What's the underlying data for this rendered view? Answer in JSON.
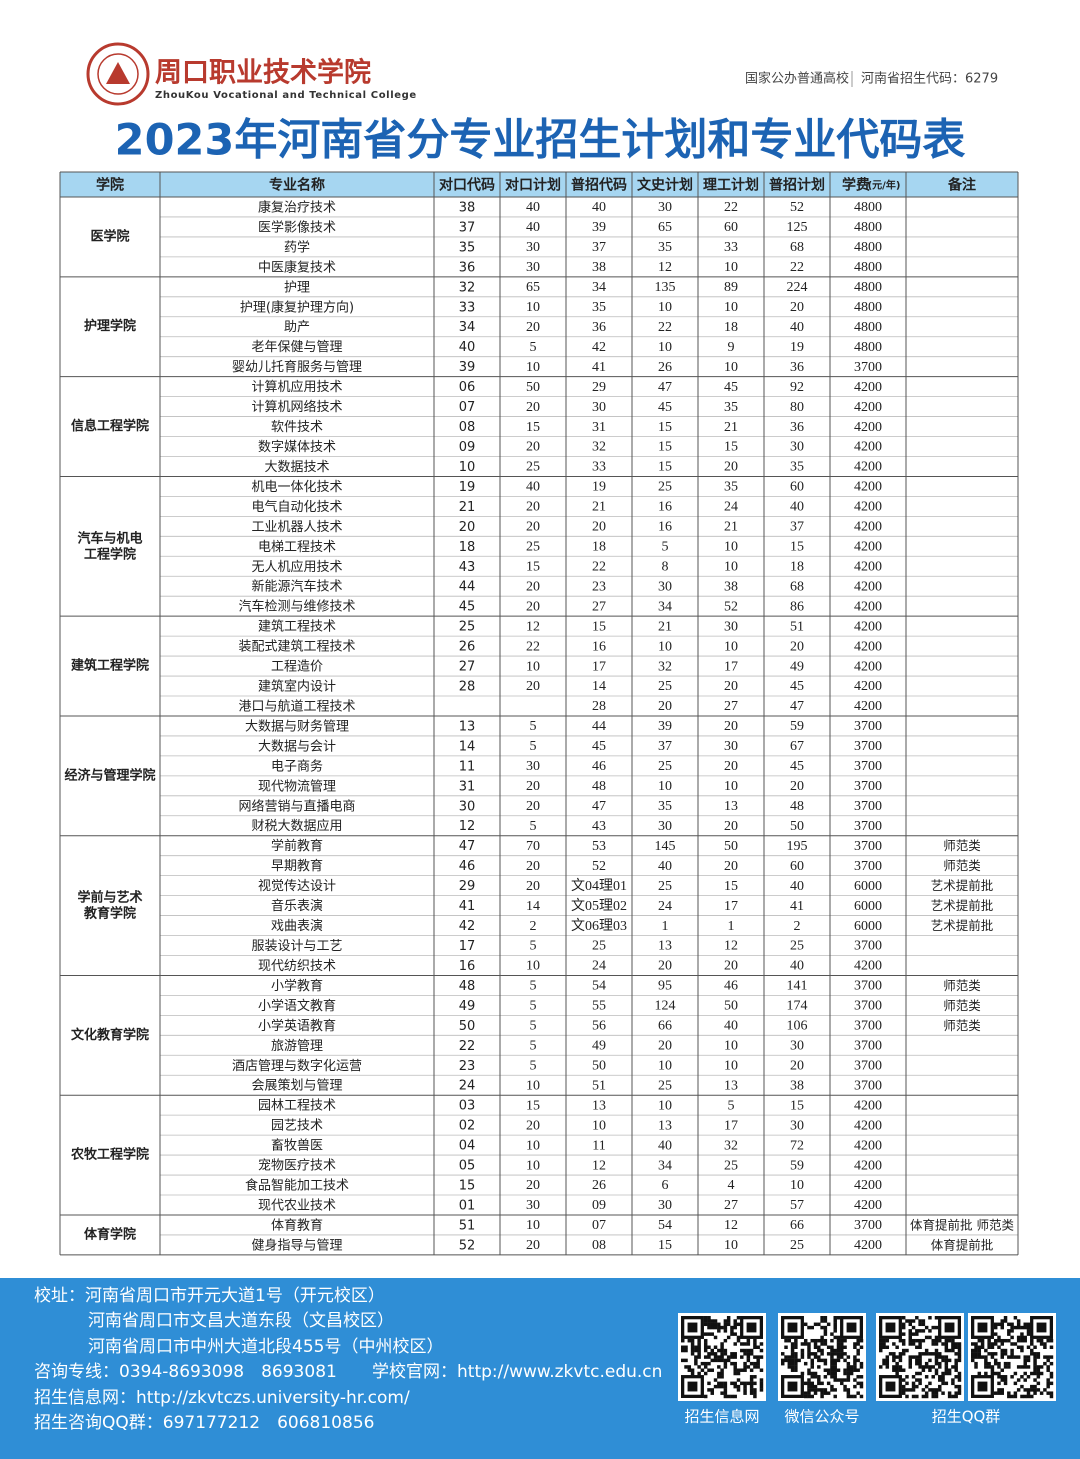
{
  "header": {
    "school_name": "周口职业技术学院",
    "school_name_en": "ZhouKou Vocational and Technical College",
    "tagline": "国家公办普通高校",
    "enroll_code": "河南省招生代码：6279"
  },
  "title": "2023年河南省分专业招生计划和专业代码表",
  "table": {
    "columns": [
      "学院",
      "专业名称",
      "对口代码",
      "对口计划",
      "普招代码",
      "文史计划",
      "理工计划",
      "普招计划",
      "学费",
      "备注"
    ],
    "fee_unit": "(元/年)",
    "groups": [
      {
        "college": "医学院",
        "rows": [
          [
            "康复治疗技术",
            "38",
            "40",
            "40",
            "30",
            "22",
            "52",
            "4800",
            null
          ],
          [
            "医学影像技术",
            "37",
            "40",
            "39",
            "65",
            "60",
            "125",
            "4800",
            null
          ],
          [
            "药学",
            "35",
            "30",
            "37",
            "35",
            "33",
            "68",
            "4800",
            null
          ],
          [
            "中医康复技术",
            "36",
            "30",
            "38",
            "12",
            "10",
            "22",
            "4800",
            null
          ]
        ]
      },
      {
        "college": "护理学院",
        "rows": [
          [
            "护理",
            "32",
            "65",
            "34",
            "135",
            "89",
            "224",
            "4800",
            null
          ],
          [
            "护理(康复护理方向)",
            "33",
            "10",
            "35",
            "10",
            "10",
            "20",
            "4800",
            null
          ],
          [
            "助产",
            "34",
            "20",
            "36",
            "22",
            "18",
            "40",
            "4800",
            null
          ],
          [
            "老年保健与管理",
            "40",
            "5",
            "42",
            "10",
            "9",
            "19",
            "4800",
            null
          ],
          [
            "婴幼儿托育服务与管理",
            "39",
            "10",
            "41",
            "26",
            "10",
            "36",
            "3700",
            null
          ]
        ]
      },
      {
        "college": "信息工程学院",
        "rows": [
          [
            "计算机应用技术",
            "06",
            "50",
            "29",
            "47",
            "45",
            "92",
            "4200",
            null
          ],
          [
            "计算机网络技术",
            "07",
            "20",
            "30",
            "45",
            "35",
            "80",
            "4200",
            null
          ],
          [
            "软件技术",
            "08",
            "15",
            "31",
            "15",
            "21",
            "36",
            "4200",
            null
          ],
          [
            "数字媒体技术",
            "09",
            "20",
            "32",
            "15",
            "15",
            "30",
            "4200",
            null
          ],
          [
            "大数据技术",
            "10",
            "25",
            "33",
            "15",
            "20",
            "35",
            "4200",
            null
          ]
        ]
      },
      {
        "college": "汽车与机电工程学院",
        "rows": [
          [
            "机电一体化技术",
            "19",
            "40",
            "19",
            "25",
            "35",
            "60",
            "4200",
            null
          ],
          [
            "电气自动化技术",
            "21",
            "20",
            "21",
            "16",
            "24",
            "40",
            "4200",
            null
          ],
          [
            "工业机器人技术",
            "20",
            "20",
            "20",
            "16",
            "21",
            "37",
            "4200",
            null
          ],
          [
            "电梯工程技术",
            "18",
            "25",
            "18",
            "5",
            "10",
            "15",
            "4200",
            null
          ],
          [
            "无人机应用技术",
            "43",
            "15",
            "22",
            "8",
            "10",
            "18",
            "4200",
            null
          ],
          [
            "新能源汽车技术",
            "44",
            "20",
            "23",
            "30",
            "38",
            "68",
            "4200",
            null
          ],
          [
            "汽车检测与维修技术",
            "45",
            "20",
            "27",
            "34",
            "52",
            "86",
            "4200",
            null
          ]
        ]
      },
      {
        "college": "建筑工程学院",
        "rows": [
          [
            "建筑工程技术",
            "25",
            "12",
            "15",
            "21",
            "30",
            "51",
            "4200",
            null
          ],
          [
            "装配式建筑工程技术",
            "26",
            "22",
            "16",
            "10",
            "10",
            "20",
            "4200",
            null
          ],
          [
            "工程造价",
            "27",
            "10",
            "17",
            "32",
            "17",
            "49",
            "4200",
            null
          ],
          [
            "建筑室内设计",
            "28",
            "20",
            "14",
            "25",
            "20",
            "45",
            "4200",
            null
          ],
          [
            "港口与航道工程技术",
            null,
            null,
            "28",
            "20",
            "27",
            "47",
            "4200",
            null
          ]
        ]
      },
      {
        "college": "经济与管理学院",
        "rows": [
          [
            "大数据与财务管理",
            "13",
            "5",
            "44",
            "39",
            "20",
            "59",
            "3700",
            null
          ],
          [
            "大数据与会计",
            "14",
            "5",
            "45",
            "37",
            "30",
            "67",
            "3700",
            null
          ],
          [
            "电子商务",
            "11",
            "30",
            "46",
            "25",
            "20",
            "45",
            "3700",
            null
          ],
          [
            "现代物流管理",
            "31",
            "20",
            "48",
            "10",
            "10",
            "20",
            "3700",
            null
          ],
          [
            "网络营销与直播电商",
            "30",
            "20",
            "47",
            "35",
            "13",
            "48",
            "3700",
            null
          ],
          [
            "财税大数据应用",
            "12",
            "5",
            "43",
            "30",
            "20",
            "50",
            "3700",
            null
          ]
        ]
      },
      {
        "college": "学前与艺术教育学院",
        "rows": [
          [
            "学前教育",
            "47",
            "70",
            "53",
            "145",
            "50",
            "195",
            "3700",
            "师范类"
          ],
          [
            "早期教育",
            "46",
            "20",
            "52",
            "40",
            "20",
            "60",
            "3700",
            "师范类"
          ],
          [
            "视觉传达设计",
            "29",
            "20",
            "文04理01",
            "25",
            "15",
            "40",
            "6000",
            "艺术提前批"
          ],
          [
            "音乐表演",
            "41",
            "14",
            "文05理02",
            "24",
            "17",
            "41",
            "6000",
            "艺术提前批"
          ],
          [
            "戏曲表演",
            "42",
            "2",
            "文06理03",
            "1",
            "1",
            "2",
            "6000",
            "艺术提前批"
          ],
          [
            "服装设计与工艺",
            "17",
            "5",
            "25",
            "13",
            "12",
            "25",
            "3700",
            null
          ],
          [
            "现代纺织技术",
            "16",
            "10",
            "24",
            "20",
            "20",
            "40",
            "4200",
            null
          ]
        ]
      },
      {
        "college": "文化教育学院",
        "rows": [
          [
            "小学教育",
            "48",
            "5",
            "54",
            "95",
            "46",
            "141",
            "3700",
            "师范类"
          ],
          [
            "小学语文教育",
            "49",
            "5",
            "55",
            "124",
            "50",
            "174",
            "3700",
            "师范类"
          ],
          [
            "小学英语教育",
            "50",
            "5",
            "56",
            "66",
            "40",
            "106",
            "3700",
            "师范类"
          ],
          [
            "旅游管理",
            "22",
            "5",
            "49",
            "20",
            "10",
            "30",
            "3700",
            null
          ],
          [
            "酒店管理与数字化运营",
            "23",
            "5",
            "50",
            "10",
            "10",
            "20",
            "3700",
            null
          ],
          [
            "会展策划与管理",
            "24",
            "10",
            "51",
            "25",
            "13",
            "38",
            "3700",
            null
          ]
        ]
      },
      {
        "college": "农牧工程学院",
        "rows": [
          [
            "园林工程技术",
            "03",
            "15",
            "13",
            "10",
            "5",
            "15",
            "4200",
            null
          ],
          [
            "园艺技术",
            "02",
            "20",
            "10",
            "13",
            "17",
            "30",
            "4200",
            null
          ],
          [
            "畜牧兽医",
            "04",
            "10",
            "11",
            "40",
            "32",
            "72",
            "4200",
            null
          ],
          [
            "宠物医疗技术",
            "05",
            "10",
            "12",
            "34",
            "25",
            "59",
            "4200",
            null
          ],
          [
            "食品智能加工技术",
            "15",
            "20",
            "26",
            "6",
            "4",
            "10",
            "4200",
            null
          ],
          [
            "现代农业技术",
            "01",
            "30",
            "09",
            "30",
            "27",
            "57",
            "4200",
            null
          ]
        ]
      },
      {
        "college": "体育学院",
        "rows": [
          [
            "体育教育",
            "51",
            "10",
            "07",
            "54",
            "12",
            "66",
            "3700",
            "体育提前批 师范类"
          ],
          [
            "健身指导与管理",
            "52",
            "20",
            "08",
            "15",
            "10",
            "25",
            "4200",
            "体育提前批"
          ]
        ]
      }
    ]
  },
  "footer": {
    "address_1": "校址：河南省周口市开元大道1号（开元校区）",
    "address_2": "河南省周口市文昌大道东段（文昌校区）",
    "address_3": "河南省周口市中州大道北段455号（中州校区）",
    "hotline": "咨询专线：0394-8693098　8693081",
    "website": "学校官网：http://www.zkvtc.edu.cn",
    "info_site": "招生信息网：http://zkvtczs.university-hr.com/",
    "qq_group": "招生咨询QQ群：697177212　606810856",
    "qr_labels": [
      "招生信息网",
      "微信公众号",
      "招生QQ群"
    ]
  }
}
